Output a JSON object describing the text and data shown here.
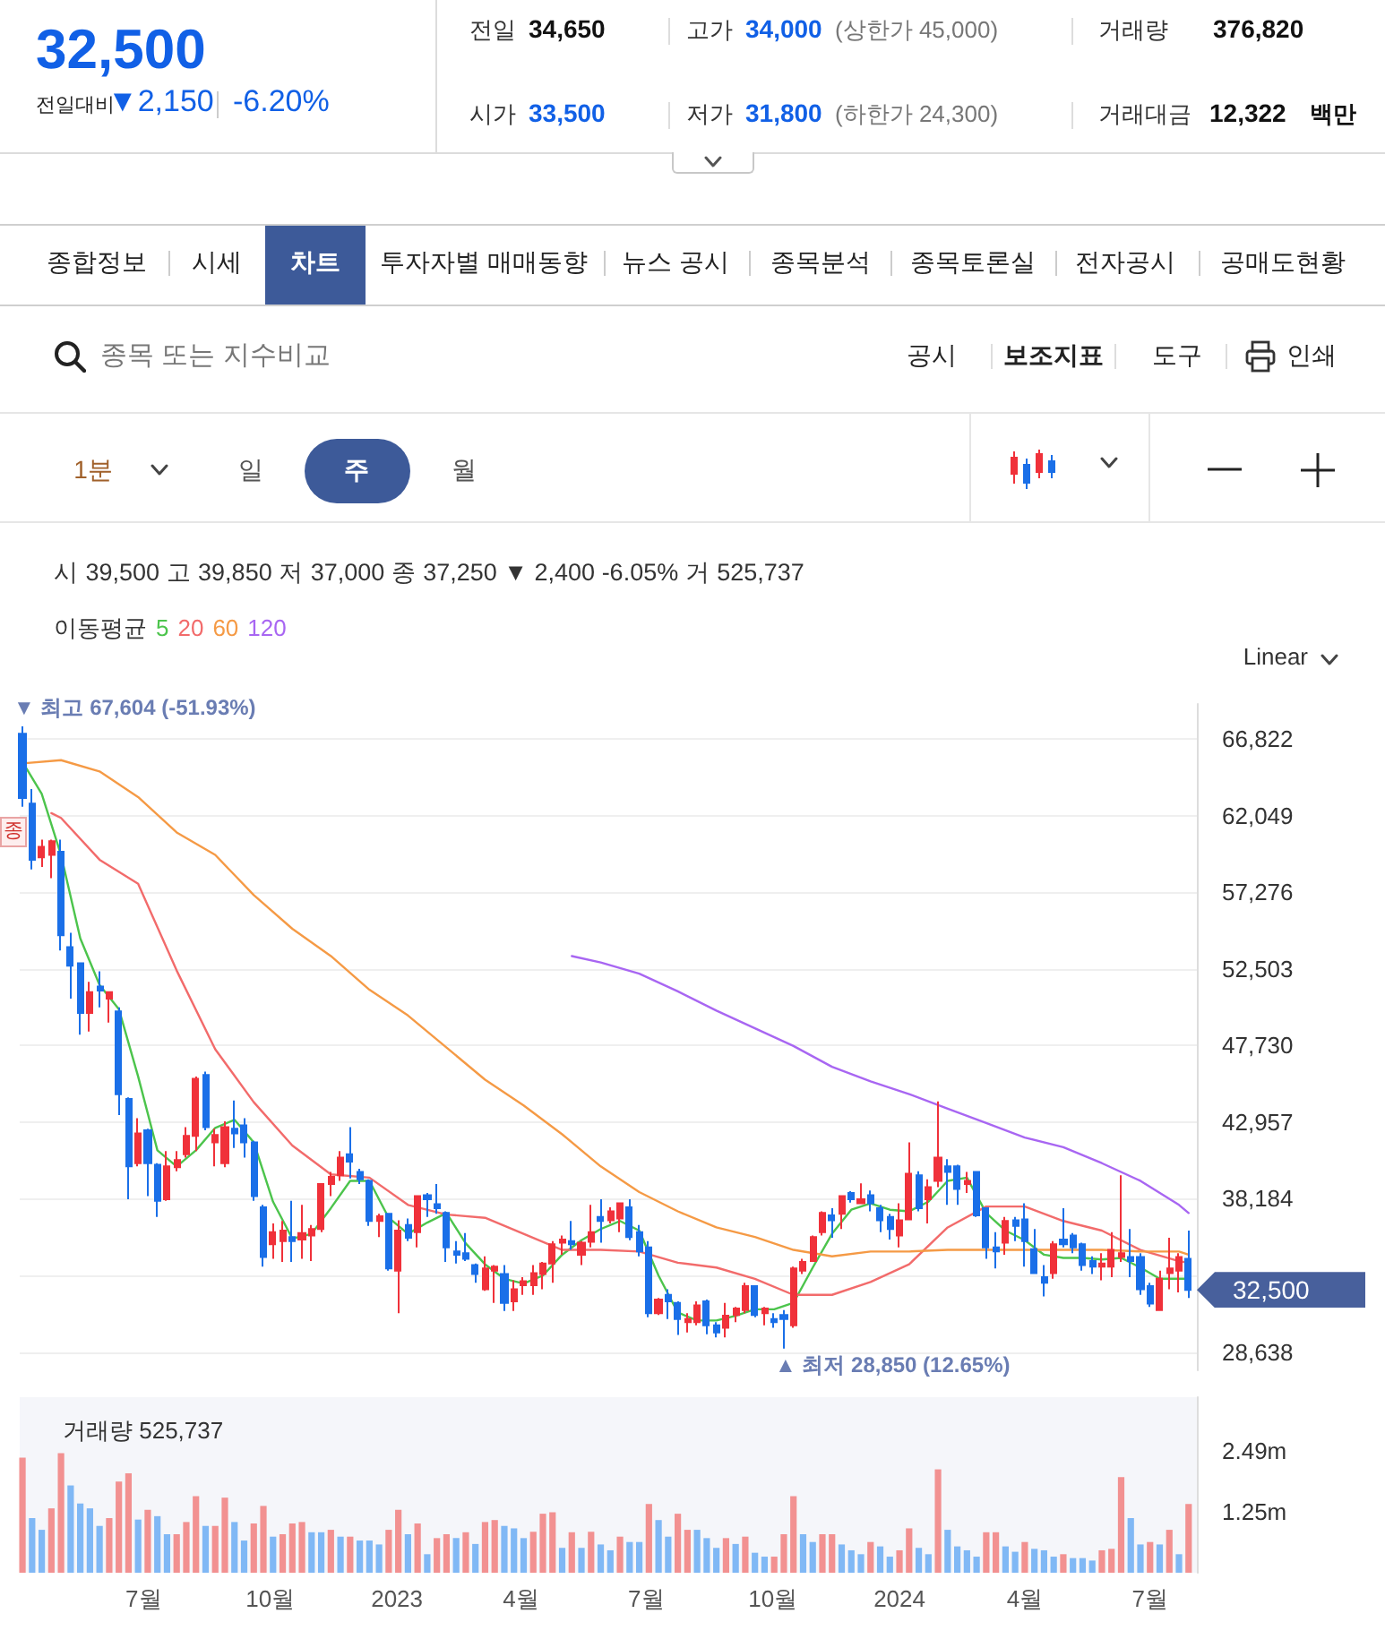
{
  "chart_data": [
    {
      "type": "other",
      "annotations": [
        "32,500",
        "전일대비",
        "▼2,150",
        "-6.20%",
        "전일",
        "34,650",
        "고가",
        "34,000",
        "(상한가 45,000)",
        "거래량",
        "376,820",
        "시가",
        "33,500",
        "저가",
        "31,800",
        "(하한가 24,300)",
        "거래대금",
        "12,322",
        "백만",
        "종합정보",
        "시세",
        "차트",
        "투자자별 매매동향",
        "뉴스 공시",
        "종목분석",
        "종목토론실",
        "전자공시",
        "공매도현황",
        "종목 또는 지수비교",
        "공시",
        "보조지표",
        "도구",
        "인쇄",
        "1분",
        "일",
        "주",
        "월"
      ]
    },
    {
      "type": "candlestick",
      "subtitle": "시 39,500 고 39,850 저 37,000 종 37,250 ▼ 2,400 -6.05% 거 525,737",
      "legend_title": "이동평균",
      "legend": "top left",
      "tick_labels": "y",
      "grid": "y",
      "x": [
        "2022-04-04",
        "2022-04-11",
        "2022-04-18",
        "2022-04-25",
        "2022-05-02",
        "2022-05-09",
        "2022-05-16",
        "2022-05-23",
        "2022-05-30",
        "2022-06-06",
        "2022-06-13",
        "2022-06-20",
        "2022-06-27",
        "2022-07-04",
        "2022-07-11",
        "2022-07-18",
        "2022-07-25",
        "2022-08-01",
        "2022-08-08",
        "2022-08-15",
        "2022-08-22",
        "2022-08-29",
        "2022-09-05",
        "2022-09-12",
        "2022-09-19",
        "2022-09-26",
        "2022-10-03",
        "2022-10-10",
        "2022-10-17",
        "2022-10-24",
        "2022-10-31",
        "2022-11-07",
        "2022-11-14",
        "2022-11-21",
        "2022-11-28",
        "2022-12-05",
        "2022-12-12",
        "2022-12-19",
        "2022-12-26",
        "2023-01-02",
        "2023-01-09",
        "2023-01-16",
        "2023-01-23",
        "2023-01-30",
        "2023-02-06",
        "2023-02-13",
        "2023-02-20",
        "2023-02-27",
        "2023-03-06",
        "2023-03-13",
        "2023-03-20",
        "2023-03-27",
        "2023-04-03",
        "2023-04-10",
        "2023-04-17",
        "2023-04-24",
        "2023-05-01",
        "2023-05-08",
        "2023-05-15",
        "2023-05-22",
        "2023-05-29",
        "2023-06-05",
        "2023-06-12",
        "2023-06-19",
        "2023-06-26",
        "2023-07-03",
        "2023-07-10",
        "2023-07-17",
        "2023-07-24",
        "2023-07-31",
        "2023-08-07",
        "2023-08-14",
        "2023-08-21",
        "2023-08-28",
        "2023-09-04",
        "2023-09-11",
        "2023-09-18",
        "2023-09-25",
        "2023-10-02",
        "2023-10-09",
        "2023-10-16",
        "2023-10-23",
        "2023-10-30",
        "2023-11-06",
        "2023-11-13",
        "2023-11-20",
        "2023-11-27",
        "2023-12-04",
        "2023-12-11",
        "2023-12-18",
        "2023-12-25",
        "2024-01-01",
        "2024-01-08",
        "2024-01-15",
        "2024-01-22",
        "2024-01-29",
        "2024-02-05",
        "2024-02-12",
        "2024-02-19",
        "2024-02-26",
        "2024-03-04",
        "2024-03-11",
        "2024-03-18",
        "2024-03-25",
        "2024-04-01",
        "2024-04-08",
        "2024-04-15",
        "2024-04-22",
        "2024-04-29",
        "2024-05-06",
        "2024-05-13",
        "2024-05-20",
        "2024-05-27",
        "2024-06-03",
        "2024-06-10",
        "2024-06-17",
        "2024-06-24",
        "2024-07-01",
        "2024-07-08",
        "2024-07-15",
        "2024-07-22",
        "2024-07-29"
      ],
      "ohlc": [
        [
          67150,
          67604,
          62600,
          63150
        ],
        [
          62800,
          63700,
          58700,
          59300
        ],
        [
          59450,
          60550,
          58850,
          60100
        ],
        [
          59600,
          60550,
          58150,
          60450
        ],
        [
          59800,
          60550,
          53650,
          54600
        ],
        [
          53850,
          54750,
          50650,
          52700
        ],
        [
          52850,
          52900,
          48400,
          49750
        ],
        [
          49750,
          51700,
          48600,
          51050
        ],
        [
          51400,
          52350,
          50100,
          51150
        ],
        [
          50650,
          51100,
          49150,
          51050
        ],
        [
          49850,
          50100,
          43400,
          44700
        ],
        [
          44400,
          44500,
          38150,
          40200
        ],
        [
          40400,
          43200,
          40200,
          42250
        ],
        [
          42450,
          42550,
          38350,
          40400
        ],
        [
          40300,
          40400,
          37050,
          38050
        ],
        [
          38150,
          41150,
          38050,
          40200
        ],
        [
          40150,
          41150,
          39900,
          40600
        ],
        [
          40950,
          42650,
          40750,
          42100
        ],
        [
          42100,
          45800,
          41150,
          45650
        ],
        [
          45900,
          46100,
          42450,
          42650
        ],
        [
          41700,
          42550,
          40200,
          42150
        ],
        [
          40400,
          43000,
          40150,
          42650
        ],
        [
          42550,
          44300,
          41350,
          42250
        ],
        [
          42750,
          43200,
          40750,
          41700
        ],
        [
          41700,
          41800,
          38050,
          38350
        ],
        [
          37650,
          37800,
          33950,
          34550
        ],
        [
          35350,
          36650,
          34450,
          36100
        ],
        [
          35550,
          36800,
          34250,
          36200
        ],
        [
          35800,
          38050,
          34250,
          35550
        ],
        [
          35650,
          37800,
          34450,
          36050
        ],
        [
          35900,
          36550,
          34300,
          36300
        ],
        [
          36300,
          39150,
          36100,
          39100
        ],
        [
          39100,
          39850,
          38350,
          39550
        ],
        [
          39650,
          41150,
          39300,
          40750
        ],
        [
          40950,
          42650,
          39450,
          40500
        ],
        [
          39850,
          40050,
          39100,
          39400
        ],
        [
          39300,
          39400,
          36500,
          36800
        ],
        [
          36800,
          37250,
          35800,
          37100
        ],
        [
          37250,
          37300,
          33700,
          33850
        ],
        [
          33700,
          36850,
          31050,
          36200
        ],
        [
          36550,
          36950,
          35550,
          35750
        ],
        [
          36100,
          38400,
          35150,
          38350
        ],
        [
          38400,
          38550,
          37050,
          38150
        ],
        [
          37850,
          39100,
          37250,
          37600
        ],
        [
          37300,
          37400,
          34250,
          35150
        ],
        [
          34900,
          35550,
          34150,
          34700
        ],
        [
          34800,
          36050,
          34300,
          34450
        ],
        [
          34050,
          34150,
          32950,
          33500
        ],
        [
          32550,
          34600,
          32450,
          33850
        ],
        [
          33700,
          34050,
          31700,
          33950
        ],
        [
          33500,
          34050,
          31200,
          31700
        ],
        [
          31800,
          33100,
          31200,
          32550
        ],
        [
          32800,
          33300,
          32200,
          33050
        ],
        [
          32800,
          34050,
          32200,
          33550
        ],
        [
          33500,
          34250,
          32550,
          34150
        ],
        [
          34150,
          35550,
          32950,
          35350
        ],
        [
          35450,
          35900,
          34700,
          35650
        ],
        [
          35550,
          36800,
          35000,
          35350
        ],
        [
          34700,
          35550,
          34050,
          35450
        ],
        [
          35500,
          37800,
          35150,
          36100
        ],
        [
          37050,
          38150,
          35450,
          36800
        ],
        [
          36850,
          37650,
          36650,
          37400
        ],
        [
          36950,
          37950,
          36100,
          37900
        ],
        [
          37650,
          38150,
          35600,
          35800
        ],
        [
          36100,
          36550,
          34600,
          34900
        ],
        [
          35150,
          35550,
          30800,
          31050
        ],
        [
          31050,
          32000,
          30950,
          31900
        ],
        [
          32200,
          32550,
          30700,
          31800
        ],
        [
          31700,
          31800,
          29700,
          30700
        ],
        [
          30500,
          31050,
          29850,
          30700
        ],
        [
          30500,
          31800,
          30300,
          31550
        ],
        [
          31800,
          31900,
          29750,
          30300
        ],
        [
          30300,
          30500,
          29550,
          29850
        ],
        [
          30150,
          31700,
          29550,
          30900
        ],
        [
          30950,
          31450,
          30500,
          31350
        ],
        [
          31250,
          32950,
          31050,
          32750
        ],
        [
          32750,
          32800,
          30800,
          30950
        ],
        [
          31050,
          31450,
          30300,
          31350
        ],
        [
          30700,
          31050,
          30150,
          30500
        ],
        [
          30950,
          31250,
          28850,
          30700
        ],
        [
          30300,
          33950,
          30150,
          33850
        ],
        [
          33700,
          34450,
          33500,
          34250
        ],
        [
          34300,
          35900,
          34250,
          35800
        ],
        [
          36100,
          37400,
          35900,
          37300
        ],
        [
          37150,
          37600,
          35750,
          36850
        ],
        [
          37250,
          38400,
          36300,
          38350
        ],
        [
          38550,
          38650,
          37950,
          38150
        ],
        [
          37900,
          39150,
          37850,
          38150
        ],
        [
          38400,
          38700,
          37400,
          37900
        ],
        [
          37600,
          37800,
          36100,
          36850
        ],
        [
          37050,
          37250,
          35650,
          36300
        ],
        [
          35900,
          37900,
          35150,
          36850
        ],
        [
          36900,
          41700,
          36850,
          39750
        ],
        [
          39650,
          39900,
          37400,
          37600
        ],
        [
          38150,
          39400,
          36650,
          38900
        ],
        [
          39300,
          44250,
          38900,
          40750
        ],
        [
          40200,
          40650,
          37800,
          39850
        ],
        [
          40200,
          40300,
          37800,
          38800
        ],
        [
          39100,
          39850,
          38550,
          39300
        ],
        [
          39850,
          39900,
          37050,
          37150
        ],
        [
          37600,
          37650,
          34450,
          35150
        ],
        [
          35150,
          36100,
          33850,
          34900
        ],
        [
          35450,
          37050,
          34700,
          36800
        ],
        [
          36850,
          37050,
          35550,
          36500
        ],
        [
          36900,
          37900,
          33950,
          35550
        ],
        [
          35050,
          36300,
          33500,
          33550
        ],
        [
          33300,
          34050,
          32100,
          32950
        ],
        [
          33550,
          35550,
          33200,
          35350
        ],
        [
          35650,
          37600,
          35150,
          35350
        ],
        [
          35900,
          36050,
          34800,
          35150
        ],
        [
          35350,
          35450,
          33700,
          34050
        ],
        [
          34300,
          34600,
          33500,
          33950
        ],
        [
          33950,
          34800,
          33100,
          34150
        ],
        [
          33950,
          36100,
          33300,
          35000
        ],
        [
          34550,
          39650,
          34250,
          34800
        ],
        [
          34550,
          36300,
          33300,
          34300
        ],
        [
          34550,
          34800,
          32200,
          32550
        ],
        [
          32750,
          32950,
          31450,
          31650
        ],
        [
          31250,
          33700,
          31200,
          33200
        ],
        [
          33550,
          35750,
          32550,
          33850
        ],
        [
          33700,
          34800,
          32350,
          34550
        ],
        [
          34450,
          36200,
          32000,
          32500
        ]
      ],
      "colors": [
        "#1a6fe8",
        "#1a6fe8",
        "#f0313a",
        "#f0313a",
        "#1a6fe8",
        "#1a6fe8",
        "#1a6fe8",
        "#f0313a",
        "#1a6fe8",
        "#f0313a",
        "#1a6fe8",
        "#1a6fe8",
        "#f0313a",
        "#1a6fe8",
        "#1a6fe8",
        "#f0313a",
        "#f0313a",
        "#f0313a",
        "#f0313a",
        "#1a6fe8",
        "#f0313a",
        "#f0313a",
        "#1a6fe8",
        "#1a6fe8",
        "#1a6fe8",
        "#1a6fe8",
        "#f0313a",
        "#f0313a",
        "#1a6fe8",
        "#f0313a",
        "#f0313a",
        "#f0313a",
        "#f0313a",
        "#f0313a",
        "#1a6fe8",
        "#1a6fe8",
        "#1a6fe8",
        "#f0313a",
        "#1a6fe8",
        "#f0313a",
        "#1a6fe8",
        "#f0313a",
        "#1a6fe8",
        "#1a6fe8",
        "#1a6fe8",
        "#1a6fe8",
        "#1a6fe8",
        "#1a6fe8",
        "#f0313a",
        "#f0313a",
        "#1a6fe8",
        "#f0313a",
        "#f0313a",
        "#f0313a",
        "#f0313a",
        "#f0313a",
        "#f0313a",
        "#1a6fe8",
        "#f0313a",
        "#f0313a",
        "#1a6fe8",
        "#f0313a",
        "#f0313a",
        "#1a6fe8",
        "#1a6fe8",
        "#1a6fe8",
        "#f0313a",
        "#1a6fe8",
        "#1a6fe8",
        "#f0313a",
        "#f0313a",
        "#1a6fe8",
        "#1a6fe8",
        "#f0313a",
        "#f0313a",
        "#f0313a",
        "#1a6fe8",
        "#f0313a",
        "#1a6fe8",
        "#1a6fe8",
        "#f0313a",
        "#f0313a",
        "#f0313a",
        "#f0313a",
        "#1a6fe8",
        "#f0313a",
        "#1a6fe8",
        "#f0313a",
        "#1a6fe8",
        "#1a6fe8",
        "#1a6fe8",
        "#f0313a",
        "#f0313a",
        "#1a6fe8",
        "#f0313a",
        "#f0313a",
        "#1a6fe8",
        "#1a6fe8",
        "#f0313a",
        "#1a6fe8",
        "#1a6fe8",
        "#1a6fe8",
        "#f0313a",
        "#1a6fe8",
        "#1a6fe8",
        "#1a6fe8",
        "#1a6fe8",
        "#f0313a",
        "#1a6fe8",
        "#1a6fe8",
        "#1a6fe8",
        "#1a6fe8",
        "#f0313a",
        "#f0313a",
        "#f0313a",
        "#1a6fe8",
        "#1a6fe8",
        "#1a6fe8",
        "#f0313a",
        "#f0313a",
        "#f0313a",
        "#1a6fe8"
      ],
      "series": [
        {
          "type": "line",
          "name": "5",
          "color": "#4cc44c",
          "x": [
            "2022-04-04",
            "2022-04-18",
            "2022-05-02",
            "2022-05-16",
            "2022-05-30",
            "2022-06-13",
            "2022-06-27",
            "2022-07-11",
            "2022-07-25",
            "2022-08-08",
            "2022-08-22",
            "2022-09-05",
            "2022-09-19",
            "2022-10-03",
            "2022-10-17",
            "2022-10-31",
            "2022-11-14",
            "2022-11-28",
            "2022-12-12",
            "2022-12-26",
            "2023-01-09",
            "2023-01-23",
            "2023-02-06",
            "2023-02-20",
            "2023-03-06",
            "2023-03-20",
            "2023-04-03",
            "2023-04-17",
            "2023-05-01",
            "2023-05-15",
            "2023-05-29",
            "2023-06-12",
            "2023-06-26",
            "2023-07-10",
            "2023-07-24",
            "2023-08-07",
            "2023-08-21",
            "2023-09-04",
            "2023-09-18",
            "2023-10-02",
            "2023-10-16",
            "2023-10-30",
            "2023-11-13",
            "2023-11-27",
            "2023-12-11",
            "2023-12-25",
            "2024-01-08",
            "2024-01-22",
            "2024-02-05",
            "2024-02-19",
            "2024-03-04",
            "2024-03-18",
            "2024-04-01",
            "2024-04-15",
            "2024-04-29",
            "2024-05-13",
            "2024-05-27",
            "2024-06-10",
            "2024-06-24",
            "2024-07-08",
            "2024-07-22",
            "2024-07-29"
          ],
          "values": [
            65400,
            63400,
            59600,
            54400,
            51500,
            50000,
            45800,
            41200,
            40200,
            41200,
            42600,
            43100,
            41700,
            38000,
            35700,
            36000,
            37600,
            39300,
            39300,
            37000,
            36000,
            36700,
            37300,
            35400,
            34100,
            33200,
            32900,
            33400,
            34700,
            35600,
            36300,
            36800,
            36200,
            33400,
            31100,
            30600,
            30600,
            30900,
            31300,
            31300,
            31700,
            33900,
            36000,
            37500,
            37900,
            37500,
            37400,
            38000,
            39300,
            39500,
            37300,
            36200,
            35600,
            34700,
            34500,
            34500,
            34400,
            34500,
            33900,
            33200,
            33200,
            33200
          ]
        },
        {
          "type": "line",
          "name": "20",
          "color": "#f26b6b",
          "x": [
            "2022-04-25",
            "2022-05-02",
            "2022-05-30",
            "2022-06-27",
            "2022-07-25",
            "2022-08-22",
            "2022-09-19",
            "2022-10-17",
            "2022-11-14",
            "2022-12-12",
            "2023-01-09",
            "2023-02-06",
            "2023-03-06",
            "2023-04-03",
            "2023-05-01",
            "2023-05-29",
            "2023-06-26",
            "2023-07-24",
            "2023-08-21",
            "2023-09-18",
            "2023-10-16",
            "2023-11-13",
            "2023-12-11",
            "2024-01-08",
            "2024-02-05",
            "2024-03-04",
            "2024-04-01",
            "2024-04-29",
            "2024-05-27",
            "2024-06-24",
            "2024-07-22",
            "2024-07-29"
          ],
          "values": [
            62200,
            61900,
            59300,
            57800,
            52400,
            47500,
            44200,
            41500,
            39700,
            39500,
            37800,
            37200,
            37000,
            36000,
            35000,
            35000,
            34900,
            34200,
            33900,
            33200,
            32200,
            32200,
            33000,
            34100,
            36400,
            37700,
            37700,
            36800,
            36200,
            35000,
            34300,
            34200
          ]
        },
        {
          "type": "line",
          "name": "60",
          "color": "#f59a45",
          "x": [
            "2022-04-04",
            "2022-05-02",
            "2022-05-30",
            "2022-06-27",
            "2022-07-25",
            "2022-08-22",
            "2022-09-19",
            "2022-10-17",
            "2022-11-14",
            "2022-12-12",
            "2023-01-09",
            "2023-02-06",
            "2023-03-06",
            "2023-04-03",
            "2023-05-01",
            "2023-05-29",
            "2023-06-26",
            "2023-07-24",
            "2023-08-21",
            "2023-09-18",
            "2023-10-16",
            "2023-11-13",
            "2023-12-11",
            "2024-01-08",
            "2024-02-05",
            "2024-03-04",
            "2024-04-01",
            "2024-04-29",
            "2024-05-27",
            "2024-06-24",
            "2024-07-22",
            "2024-07-29"
          ],
          "values": [
            65300,
            65500,
            64800,
            63200,
            61000,
            59600,
            57100,
            55000,
            53300,
            51200,
            49600,
            47600,
            45600,
            44000,
            42200,
            40200,
            38600,
            37400,
            36400,
            35800,
            35000,
            34600,
            34900,
            34900,
            35000,
            35000,
            35000,
            35000,
            35000,
            34900,
            34900,
            34700
          ]
        },
        {
          "type": "line",
          "name": "120",
          "color": "#a866f2",
          "x": [
            "2023-05-08",
            "2023-05-29",
            "2023-06-26",
            "2023-07-24",
            "2023-08-21",
            "2023-09-18",
            "2023-10-16",
            "2023-11-13",
            "2023-12-11",
            "2024-01-08",
            "2024-02-05",
            "2024-03-04",
            "2024-04-01",
            "2024-04-29",
            "2024-05-27",
            "2024-06-24",
            "2024-07-22",
            "2024-07-29"
          ],
          "values": [
            53300,
            52900,
            52200,
            51100,
            49900,
            48800,
            47700,
            46400,
            45500,
            44700,
            43800,
            42900,
            42000,
            41400,
            40400,
            39300,
            37800,
            37300
          ]
        }
      ],
      "xlim": [
        "2022-04-02",
        "2024-08-04"
      ],
      "ylim": [
        27500,
        69000
      ],
      "yticks": [
        {
          "value": 28638,
          "label": "28,638"
        },
        {
          "value": 33411,
          "label": null
        },
        {
          "value": 38184,
          "label": "38,184"
        },
        {
          "value": 42957,
          "label": "42,957"
        },
        {
          "value": 47730,
          "label": "47,730"
        },
        {
          "value": 52503,
          "label": "52,503"
        },
        {
          "value": 57276,
          "label": "57,276"
        },
        {
          "value": 62049,
          "label": "62,049"
        },
        {
          "value": 66822,
          "label": "66,822"
        }
      ],
      "annotations": [
        {
          "text": "▼ 최고 67,604 (-51.93%)",
          "x": "2022-04-04",
          "y": 67604
        },
        {
          "text": "▲ 최저 28,850 (12.65%)",
          "x": "2023-10-09",
          "y": 28850
        },
        {
          "text": "32,500",
          "x": "2024-07-29",
          "y": 32500
        },
        "Linear",
        "종"
      ]
    },
    {
      "type": "bar",
      "title": "거래량 525,737",
      "x": [
        "2022-04-04",
        "2022-04-11",
        "2022-04-18",
        "2022-04-25",
        "2022-05-02",
        "2022-05-09",
        "2022-05-16",
        "2022-05-23",
        "2022-05-30",
        "2022-06-06",
        "2022-06-13",
        "2022-06-20",
        "2022-06-27",
        "2022-07-04",
        "2022-07-11",
        "2022-07-18",
        "2022-07-25",
        "2022-08-01",
        "2022-08-08",
        "2022-08-15",
        "2022-08-22",
        "2022-08-29",
        "2022-09-05",
        "2022-09-12",
        "2022-09-19",
        "2022-09-26",
        "2022-10-03",
        "2022-10-10",
        "2022-10-17",
        "2022-10-24",
        "2022-10-31",
        "2022-11-07",
        "2022-11-14",
        "2022-11-21",
        "2022-11-28",
        "2022-12-05",
        "2022-12-12",
        "2022-12-19",
        "2022-12-26",
        "2023-01-02",
        "2023-01-09",
        "2023-01-16",
        "2023-01-23",
        "2023-01-30",
        "2023-02-06",
        "2023-02-13",
        "2023-02-20",
        "2023-02-27",
        "2023-03-06",
        "2023-03-13",
        "2023-03-20",
        "2023-03-27",
        "2023-04-03",
        "2023-04-10",
        "2023-04-17",
        "2023-04-24",
        "2023-05-01",
        "2023-05-08",
        "2023-05-15",
        "2023-05-22",
        "2023-05-29",
        "2023-06-05",
        "2023-06-12",
        "2023-06-19",
        "2023-06-26",
        "2023-07-03",
        "2023-07-10",
        "2023-07-17",
        "2023-07-24",
        "2023-07-31",
        "2023-08-07",
        "2023-08-14",
        "2023-08-21",
        "2023-08-28",
        "2023-09-04",
        "2023-09-11",
        "2023-09-18",
        "2023-09-25",
        "2023-10-02",
        "2023-10-09",
        "2023-10-16",
        "2023-10-23",
        "2023-10-30",
        "2023-11-06",
        "2023-11-13",
        "2023-11-20",
        "2023-11-27",
        "2023-12-04",
        "2023-12-11",
        "2023-12-18",
        "2023-12-25",
        "2024-01-01",
        "2024-01-08",
        "2024-01-15",
        "2024-01-22",
        "2024-01-29",
        "2024-02-05",
        "2024-02-12",
        "2024-02-19",
        "2024-02-26",
        "2024-03-04",
        "2024-03-11",
        "2024-03-18",
        "2024-03-25",
        "2024-04-01",
        "2024-04-08",
        "2024-04-15",
        "2024-04-22",
        "2024-04-29",
        "2024-05-06",
        "2024-05-13",
        "2024-05-20",
        "2024-05-27",
        "2024-06-03",
        "2024-06-10",
        "2024-06-17",
        "2024-06-24",
        "2024-07-01",
        "2024-07-08",
        "2024-07-15",
        "2024-07-22",
        "2024-07-29"
      ],
      "values": [
        2.36,
        1.12,
        0.88,
        1.32,
        2.45,
        1.79,
        1.42,
        1.32,
        0.96,
        1.12,
        1.87,
        2.04,
        1.09,
        1.29,
        1.16,
        0.79,
        0.79,
        1.04,
        1.57,
        0.96,
        0.96,
        1.54,
        1.04,
        0.66,
        1.01,
        1.37,
        0.74,
        0.79,
        1.01,
        1.04,
        0.83,
        0.83,
        0.88,
        0.74,
        0.74,
        0.66,
        0.66,
        0.58,
        0.88,
        1.29,
        0.79,
        1.01,
        0.38,
        0.71,
        0.79,
        0.71,
        0.83,
        0.59,
        1.04,
        1.08,
        0.96,
        0.91,
        0.71,
        0.84,
        1.21,
        1.24,
        0.51,
        0.83,
        0.51,
        0.84,
        0.58,
        0.46,
        0.74,
        0.63,
        0.63,
        1.41,
        1.08,
        0.74,
        1.21,
        0.88,
        0.88,
        0.71,
        0.51,
        0.71,
        0.59,
        0.74,
        0.41,
        0.33,
        0.33,
        0.79,
        1.57,
        0.79,
        0.63,
        0.79,
        0.79,
        0.58,
        0.46,
        0.38,
        0.63,
        0.54,
        0.33,
        0.46,
        0.91,
        0.51,
        0.38,
        2.12,
        0.88,
        0.54,
        0.46,
        0.33,
        0.83,
        0.83,
        0.54,
        0.43,
        0.63,
        0.49,
        0.46,
        0.33,
        0.38,
        0.3,
        0.3,
        0.25,
        0.46,
        0.49,
        1.96,
        1.12,
        0.58,
        0.63,
        0.58,
        0.88,
        0.38,
        1.41
      ],
      "colors": [
        "#f29191",
        "#80b8f5",
        "#80b8f5",
        "#f29191",
        "#f29191",
        "#80b8f5",
        "#80b8f5",
        "#80b8f5",
        "#80b8f5",
        "#f29191",
        "#f29191",
        "#f29191",
        "#80b8f5",
        "#f29191",
        "#80b8f5",
        "#80b8f5",
        "#f29191",
        "#f29191",
        "#f29191",
        "#80b8f5",
        "#f29191",
        "#f29191",
        "#80b8f5",
        "#80b8f5",
        "#f29191",
        "#f29191",
        "#80b8f5",
        "#f29191",
        "#f29191",
        "#f29191",
        "#80b8f5",
        "#80b8f5",
        "#f29191",
        "#80b8f5",
        "#f29191",
        "#80b8f5",
        "#80b8f5",
        "#80b8f5",
        "#f29191",
        "#f29191",
        "#80b8f5",
        "#f29191",
        "#80b8f5",
        "#f29191",
        "#f29191",
        "#80b8f5",
        "#f29191",
        "#80b8f5",
        "#f29191",
        "#f29191",
        "#80b8f5",
        "#80b8f5",
        "#80b8f5",
        "#f29191",
        "#f29191",
        "#f29191",
        "#80b8f5",
        "#f29191",
        "#80b8f5",
        "#f29191",
        "#80b8f5",
        "#80b8f5",
        "#f29191",
        "#80b8f5",
        "#80b8f5",
        "#f29191",
        "#80b8f5",
        "#80b8f5",
        "#f29191",
        "#f29191",
        "#80b8f5",
        "#80b8f5",
        "#80b8f5",
        "#f29191",
        "#80b8f5",
        "#f29191",
        "#80b8f5",
        "#80b8f5",
        "#f29191",
        "#f29191",
        "#f29191",
        "#80b8f5",
        "#80b8f5",
        "#f29191",
        "#f29191",
        "#80b8f5",
        "#80b8f5",
        "#80b8f5",
        "#f29191",
        "#80b8f5",
        "#80b8f5",
        "#f29191",
        "#f29191",
        "#80b8f5",
        "#80b8f5",
        "#f29191",
        "#80b8f5",
        "#80b8f5",
        "#80b8f5",
        "#80b8f5",
        "#f29191",
        "#f29191",
        "#80b8f5",
        "#80b8f5",
        "#f29191",
        "#80b8f5",
        "#80b8f5",
        "#80b8f5",
        "#f29191",
        "#80b8f5",
        "#80b8f5",
        "#80b8f5",
        "#f29191",
        "#f29191",
        "#f29191",
        "#80b8f5",
        "#80b8f5",
        "#f29191",
        "#80b8f5",
        "#f29191",
        "#80b8f5",
        "#f29191"
      ],
      "xlim": [
        "2022-04-02",
        "2024-08-04"
      ],
      "xticks": [
        {
          "value": "2022-07-01",
          "label": "7월"
        },
        {
          "value": "2022-10-01",
          "label": "10월"
        },
        {
          "value": "2023-01-01",
          "label": "2023"
        },
        {
          "value": "2023-04-01",
          "label": "4월"
        },
        {
          "value": "2023-07-01",
          "label": "7월"
        },
        {
          "value": "2023-10-01",
          "label": "10월"
        },
        {
          "value": "2024-01-01",
          "label": "2024"
        },
        {
          "value": "2024-04-01",
          "label": "4월"
        },
        {
          "value": "2024-07-01",
          "label": "7월"
        }
      ],
      "ylim": [
        0,
        3.6
      ],
      "yticks": [
        {
          "value": 1.25,
          "label": "1.25m"
        },
        {
          "value": 2.49,
          "label": "2.49m"
        }
      ]
    }
  ]
}
